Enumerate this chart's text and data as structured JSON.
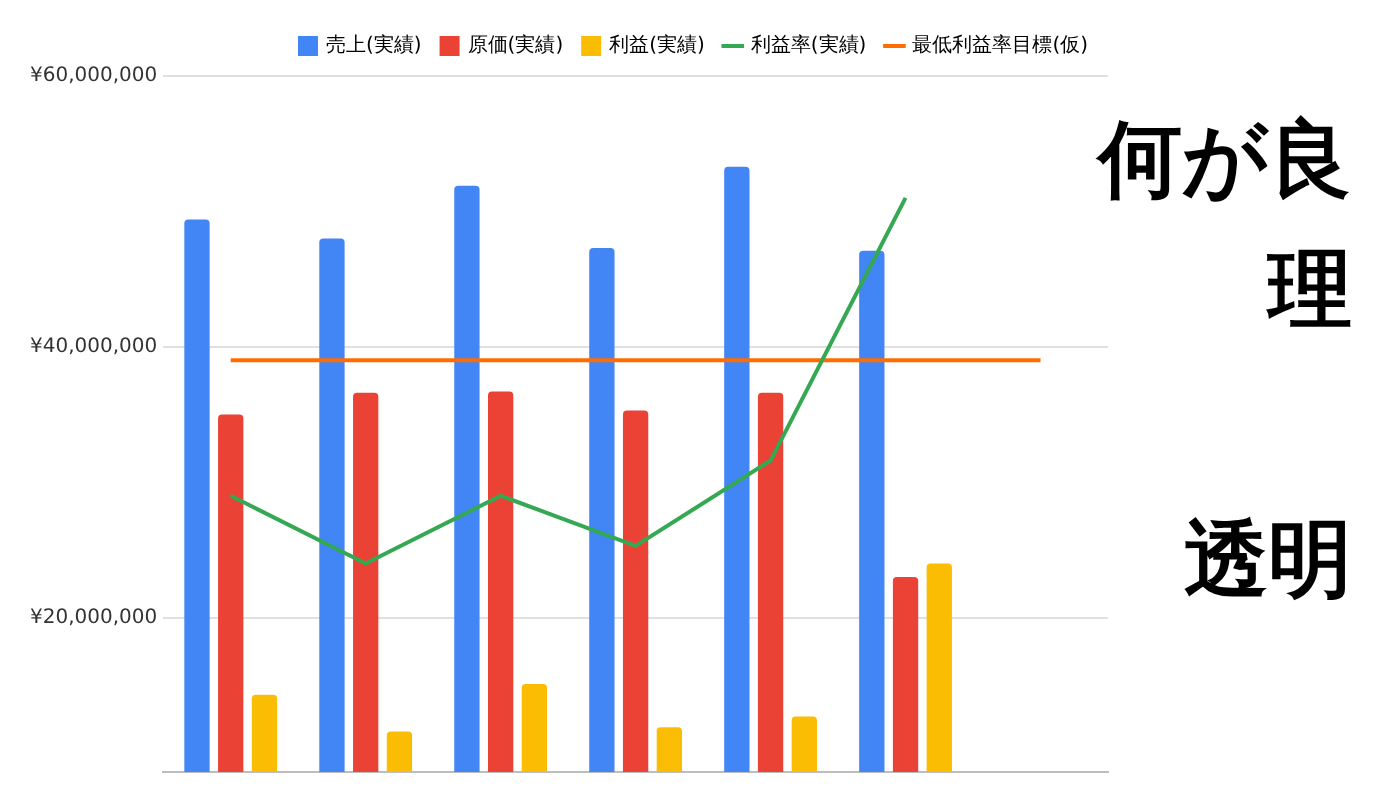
{
  "chart_data": {
    "type": "bar",
    "categories": [
      null,
      null,
      null,
      null,
      null,
      null,
      null
    ],
    "series": [
      {
        "name": "売上(実績)",
        "color": "#4285f4",
        "values": [
          49400000,
          48000000,
          51900000,
          47300000,
          53300000,
          47100000,
          null
        ]
      },
      {
        "name": "原価(実績)",
        "color": "#ea4335",
        "values": [
          35000000,
          36600000,
          36700000,
          35300000,
          36600000,
          23000000,
          null
        ]
      },
      {
        "name": "利益(実績)",
        "color": "#fbbc04",
        "values": [
          14300000,
          11600000,
          15100000,
          11900000,
          12700000,
          24000000,
          null
        ]
      },
      {
        "name": "利益率(実績)",
        "type": "line",
        "color": "#34a853",
        "values": [
          29000000,
          24000000,
          29000000,
          25300000,
          31600000,
          51000000,
          null
        ]
      },
      {
        "name": "最低利益率目標(仮)",
        "type": "line",
        "color": "#ff6d01",
        "values": [
          39000000,
          39000000,
          39000000,
          39000000,
          39000000,
          39000000,
          39000000
        ]
      }
    ],
    "ylim": [
      8600000,
      60000000
    ],
    "yticks": [
      {
        "value": 20000000,
        "label": "¥20,000,000"
      },
      {
        "value": 40000000,
        "label": "¥40,000,000"
      },
      {
        "value": 60000000,
        "label": "¥60,000,000"
      }
    ],
    "grid": "y",
    "legend": "top right",
    "tick_labels": "y",
    "marker": "none",
    "annotations": [
      "何が良",
      "理",
      "透明"
    ]
  }
}
